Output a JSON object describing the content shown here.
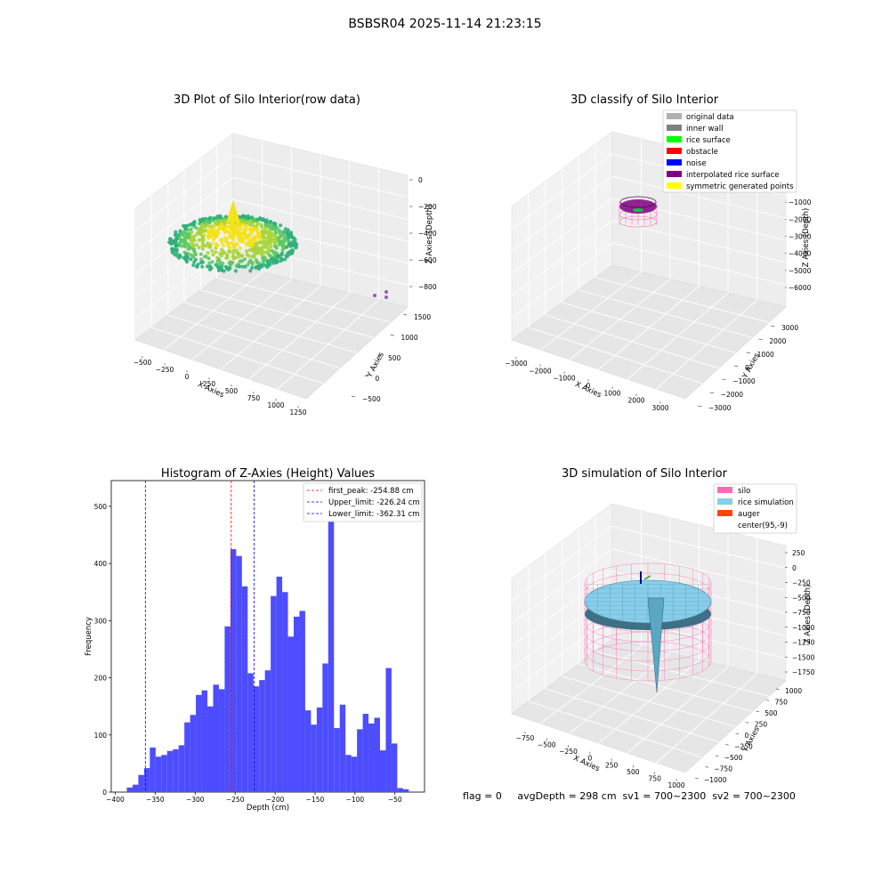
{
  "figure": {
    "suptitle": "BSBSR04 2025-11-14 21:23:15"
  },
  "footer": {
    "text": "flag = 0     avgDepth = 298 cm  sv1 = 700~2300  sv2 = 700~2300"
  },
  "colors": {
    "raw_low": "#2fb07a",
    "raw_high": "#f4e21b",
    "hist_bar": "#4d4dff",
    "peak_line": "#ff0000",
    "limit_line": "#0000ff",
    "silo": "#ff69b4",
    "rice": "#87ceeb",
    "auger": "#ff4500",
    "purple": "#800080"
  },
  "chart_data": [
    {
      "type": "scatter",
      "title": "3D Plot of Silo Interior(row data)",
      "xlabel": "X Axies",
      "ylabel": "Y Axies",
      "zlabel": "Z Axies (Depth)",
      "xticks": [
        "−500",
        "−250",
        "0",
        "250",
        "500",
        "750",
        "1000",
        "1250"
      ],
      "yticks": [
        "−500",
        "0",
        "500",
        "1000",
        "1500"
      ],
      "zticks": [
        "0",
        "−200",
        "−400",
        "−600",
        "−800"
      ],
      "xlim": [
        -600,
        1300
      ],
      "ylim": [
        -700,
        1600
      ],
      "zlim": [
        -950,
        50
      ]
    },
    {
      "type": "scatter",
      "title": "3D classify of Silo Interior",
      "xlabel": "X Axies",
      "ylabel": "Y Axies",
      "zlabel": "Z Axies (Depth)",
      "xticks": [
        "−3000",
        "−2000",
        "−1000",
        "0",
        "1000",
        "2000",
        "3000"
      ],
      "yticks": [
        "−3000",
        "−2000",
        "−1000",
        "0",
        "1000",
        "2000",
        "3000"
      ],
      "zticks": [
        "0",
        "−1000",
        "−2000",
        "−3000",
        "−4000",
        "−5000",
        "−6000"
      ],
      "legend": [
        {
          "label": "original data",
          "color": "#b0b0b0"
        },
        {
          "label": "inner wall",
          "color": "#808080"
        },
        {
          "label": "rice surface",
          "color": "#00ff00"
        },
        {
          "label": "obstacle",
          "color": "#ff0000"
        },
        {
          "label": "noise",
          "color": "#0000ff"
        },
        {
          "label": "interpolated rice surface",
          "color": "#800080"
        },
        {
          "label": "symmetric generated points",
          "color": "#ffff00"
        }
      ],
      "legend_position": "top-right"
    },
    {
      "type": "bar",
      "title": "Histogram of Z-Axies (Height) Values",
      "xlabel": "Depth (cm)",
      "ylabel": "Frequency",
      "xlim": [
        -405,
        -13
      ],
      "ylim": [
        0,
        545
      ],
      "xticks": [
        -400,
        -350,
        -300,
        -250,
        -200,
        -150,
        -100,
        -50
      ],
      "yticks": [
        0,
        100,
        200,
        300,
        400,
        500
      ],
      "bin_start": -385.5,
      "bin_width": 7.2,
      "values": [
        8,
        13,
        30,
        42,
        78,
        62,
        65,
        72,
        75,
        82,
        122,
        135,
        170,
        178,
        150,
        188,
        180,
        290,
        425,
        413,
        360,
        208,
        185,
        196,
        213,
        343,
        377,
        350,
        272,
        307,
        317,
        143,
        118,
        148,
        225,
        518,
        112,
        153,
        65,
        62,
        110,
        137,
        120,
        130,
        73,
        217,
        85,
        7,
        5
      ],
      "lines": [
        {
          "label": "first_peak: -254.88 cm",
          "x": -254.88,
          "color": "#ff0000"
        },
        {
          "label": "Upper_limit: -226.24 cm",
          "x": -226.24,
          "color": "#0000ff"
        },
        {
          "label": "Lower_limit: -362.31 cm",
          "x": -362.31,
          "color": "#0000ff"
        }
      ],
      "legend_position": "top-right"
    },
    {
      "type": "surface",
      "title": "3D simulation of Silo Interior",
      "xlabel": "X Axies",
      "ylabel": "Y Axies",
      "zlabel": "Z Axies (Depth)",
      "xticks": [
        "−750",
        "−500",
        "−250",
        "0",
        "250",
        "500",
        "750",
        "1000"
      ],
      "yticks": [
        "−1000",
        "−750",
        "−500",
        "−250",
        "0",
        "250",
        "500",
        "750",
        "1000"
      ],
      "zticks": [
        "250",
        "0",
        "−250",
        "−500",
        "−750",
        "−1000",
        "−1250",
        "−1500",
        "−1750"
      ],
      "legend": [
        {
          "label": "silo",
          "color": "#ff69b4"
        },
        {
          "label": "rice simulation",
          "color": "#87ceeb"
        },
        {
          "label": "auger",
          "color": "#ff4500"
        },
        {
          "label": "center(95,-9)",
          "color": ""
        }
      ],
      "legend_position": "top-right"
    }
  ]
}
